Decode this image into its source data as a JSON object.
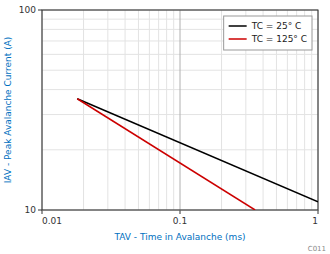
{
  "chart_data": {
    "type": "line",
    "x_label": "TAV - Time in Avalanche (ms)",
    "y_label": "IAV - Peak Avalanche Current (A)",
    "series": [
      {
        "name": "TC = 25° C",
        "color": "#000000",
        "x": [
          0.018,
          1.0
        ],
        "values": [
          36,
          11
        ]
      },
      {
        "name": "TC = 125° C",
        "color": "#cc0000",
        "x": [
          0.018,
          0.35
        ],
        "values": [
          36,
          10
        ]
      }
    ],
    "xlim": [
      0.01,
      1.0
    ],
    "ylim": [
      10,
      100
    ],
    "xticks": [
      0.01,
      0.1,
      1
    ],
    "yticks": [
      10,
      100
    ],
    "log": true,
    "grid": true,
    "legend": "upper right",
    "annotations": [
      "C011"
    ]
  }
}
